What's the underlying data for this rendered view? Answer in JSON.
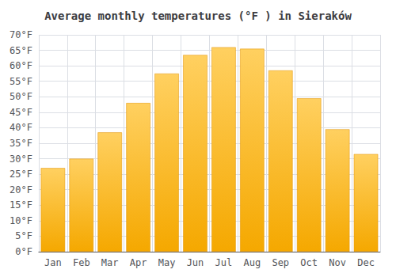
{
  "chart_data": {
    "type": "bar",
    "title": "Average monthly temperatures (°F ) in Sieraków",
    "categories": [
      "Jan",
      "Feb",
      "Mar",
      "Apr",
      "May",
      "Jun",
      "Jul",
      "Aug",
      "Sep",
      "Oct",
      "Nov",
      "Dec"
    ],
    "values": [
      27,
      30,
      38.5,
      48,
      57.5,
      63.5,
      66,
      65.5,
      58.5,
      49.5,
      39.5,
      31.5
    ],
    "color": "#F5A800",
    "ylim": [
      0,
      70
    ],
    "yticks": [
      {
        "value": 0,
        "label": "0°F"
      },
      {
        "value": 5,
        "label": "5°F"
      },
      {
        "value": 10,
        "label": "10°F"
      },
      {
        "value": 15,
        "label": "15°F"
      },
      {
        "value": 20,
        "label": "20°F"
      },
      {
        "value": 25,
        "label": "25°F"
      },
      {
        "value": 30,
        "label": "30°F"
      },
      {
        "value": 35,
        "label": "35°F"
      },
      {
        "value": 40,
        "label": "40°F"
      },
      {
        "value": 45,
        "label": "45°F"
      },
      {
        "value": 50,
        "label": "50°F"
      },
      {
        "value": 55,
        "label": "55°F"
      },
      {
        "value": 60,
        "label": "60°F"
      },
      {
        "value": 65,
        "label": "65°F"
      },
      {
        "value": 70,
        "label": "70°F"
      }
    ],
    "grid": true
  }
}
